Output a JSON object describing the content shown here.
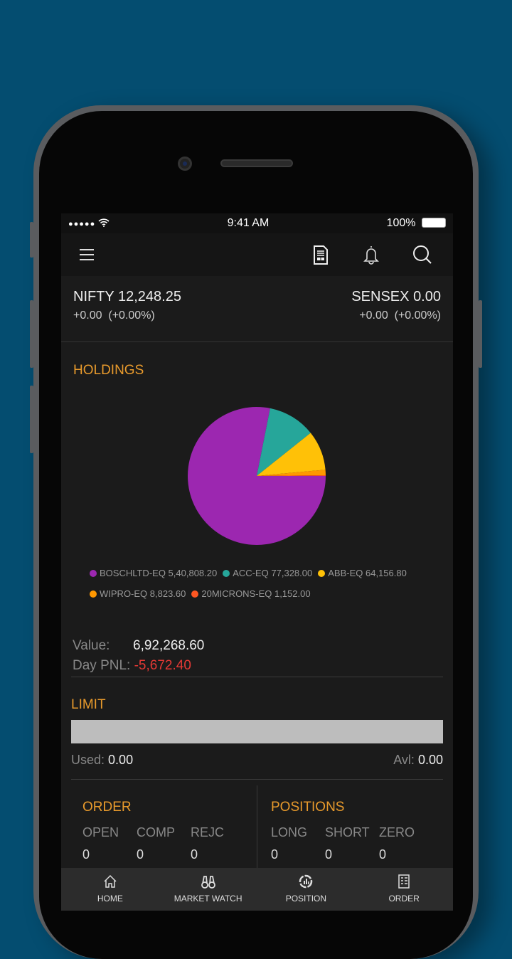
{
  "status_bar": {
    "time": "9:41 AM",
    "battery": "100%"
  },
  "header": {
    "icons": [
      "menu-icon",
      "report-icon",
      "bell-icon",
      "search-icon"
    ]
  },
  "indices": {
    "nifty": {
      "label": "NIFTY",
      "value": "12,248.25",
      "change": "+0.00",
      "pct": "(+0.00%)"
    },
    "sensex": {
      "label": "SENSEX",
      "value": "0.00",
      "change": "+0.00",
      "pct": "(+0.00%)"
    }
  },
  "holdings": {
    "title": "HOLDINGS",
    "chart_data": {
      "type": "pie",
      "categories": [
        "BOSCHLTD-EQ",
        "ACC-EQ",
        "ABB-EQ",
        "WIPRO-EQ",
        "20MICRONS-EQ"
      ],
      "values": [
        540808.2,
        77328.0,
        64156.8,
        8823.6,
        1152.0
      ],
      "labels": [
        "5,40,808.20",
        "77,328.00",
        "64,156.80",
        "8,823.60",
        "1,152.00"
      ],
      "colors": [
        "#9c27b0",
        "#26a69a",
        "#ffc107",
        "#ff9800",
        "#ff5722"
      ],
      "legend": "bottom"
    },
    "value_label": "Value:",
    "value": "6,92,268.60",
    "pnl_label": "Day PNL:",
    "pnl": "-5,672.40",
    "pnl_color": "#e53935"
  },
  "limit": {
    "title": "LIMIT",
    "used_label": "Used:",
    "used": "0.00",
    "avl_label": "Avl:",
    "avl": "0.00",
    "fill_percent": 0
  },
  "order": {
    "title": "ORDER",
    "cols": [
      "OPEN",
      "COMP",
      "REJC"
    ],
    "values": [
      "0",
      "0",
      "0"
    ]
  },
  "positions": {
    "title": "POSITIONS",
    "cols": [
      "LONG",
      "SHORT",
      "ZERO"
    ],
    "values": [
      "0",
      "0",
      "0"
    ]
  },
  "nav": [
    {
      "label": "HOME",
      "icon": "home-icon"
    },
    {
      "label": "MARKET WATCH",
      "icon": "binoculars-icon"
    },
    {
      "label": "POSITION",
      "icon": "position-icon"
    },
    {
      "label": "ORDER",
      "icon": "order-icon"
    }
  ]
}
